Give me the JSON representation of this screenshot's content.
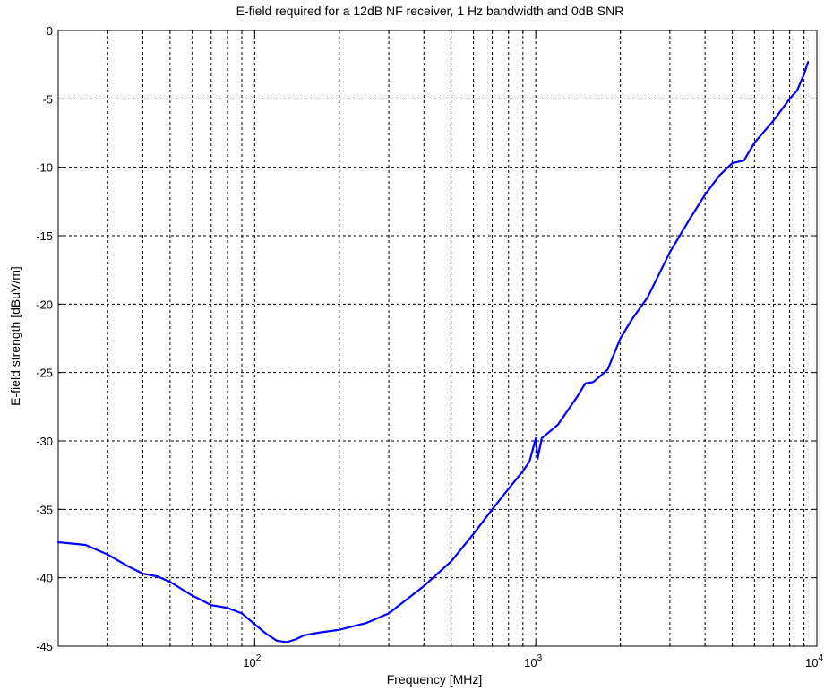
{
  "chart_data": {
    "type": "line",
    "title": "E-field required for a 12dB NF receiver, 1 Hz bandwidth and 0dB SNR",
    "xlabel": "Frequency [MHz]",
    "ylabel": "E-field strength [dBuV/m]",
    "x_scale": "log",
    "xlim": [
      20,
      10000
    ],
    "ylim": [
      -45,
      0
    ],
    "x_ticks": [
      {
        "value": 100,
        "base": "10",
        "exp": "2"
      },
      {
        "value": 1000,
        "base": "10",
        "exp": "3"
      },
      {
        "value": 10000,
        "base": "10",
        "exp": "4"
      }
    ],
    "y_ticks": [
      0,
      -5,
      -10,
      -15,
      -20,
      -25,
      -30,
      -35,
      -40,
      -45
    ],
    "grid": true,
    "grid_style": "dashed",
    "series": [
      {
        "color": "#0000ff",
        "points": [
          [
            20,
            -37.4
          ],
          [
            25,
            -37.6
          ],
          [
            30,
            -38.3
          ],
          [
            35,
            -39.1
          ],
          [
            40,
            -39.7
          ],
          [
            45,
            -39.9
          ],
          [
            50,
            -40.3
          ],
          [
            60,
            -41.3
          ],
          [
            70,
            -42.0
          ],
          [
            80,
            -42.2
          ],
          [
            90,
            -42.6
          ],
          [
            100,
            -43.4
          ],
          [
            110,
            -44.1
          ],
          [
            120,
            -44.6
          ],
          [
            130,
            -44.7
          ],
          [
            140,
            -44.5
          ],
          [
            150,
            -44.2
          ],
          [
            170,
            -44.0
          ],
          [
            200,
            -43.8
          ],
          [
            250,
            -43.3
          ],
          [
            300,
            -42.6
          ],
          [
            400,
            -40.6
          ],
          [
            500,
            -38.8
          ],
          [
            600,
            -36.8
          ],
          [
            700,
            -35.0
          ],
          [
            800,
            -33.5
          ],
          [
            900,
            -32.2
          ],
          [
            950,
            -31.5
          ],
          [
            1000,
            -29.8
          ],
          [
            1015,
            -31.3
          ],
          [
            1050,
            -29.8
          ],
          [
            1200,
            -28.8
          ],
          [
            1400,
            -26.8
          ],
          [
            1500,
            -25.8
          ],
          [
            1600,
            -25.7
          ],
          [
            1800,
            -24.8
          ],
          [
            2000,
            -22.5
          ],
          [
            2200,
            -21.1
          ],
          [
            2500,
            -19.5
          ],
          [
            3000,
            -16.2
          ],
          [
            3500,
            -13.9
          ],
          [
            4000,
            -12.0
          ],
          [
            4500,
            -10.6
          ],
          [
            5000,
            -9.7
          ],
          [
            5500,
            -9.5
          ],
          [
            6000,
            -8.2
          ],
          [
            7000,
            -6.6
          ],
          [
            8000,
            -5.0
          ],
          [
            8500,
            -4.4
          ],
          [
            9000,
            -3.2
          ],
          [
            9300,
            -2.3
          ]
        ]
      }
    ]
  }
}
